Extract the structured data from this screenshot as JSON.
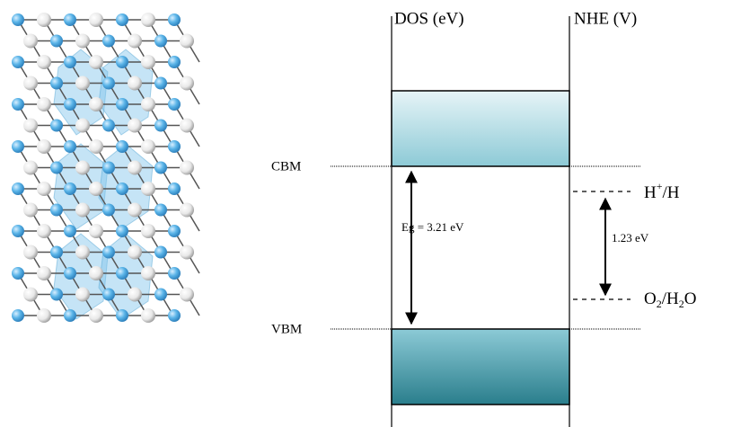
{
  "dos_label": "DOS (eV)",
  "nhe_label": "NHE (V)",
  "cbm_label": "CBM",
  "vbm_label": "VBM",
  "band_gap_label": "Eg = 3.21 eV",
  "redox_gap_label": "1.23 eV",
  "reduction_couple": [
    "H",
    "+",
    "/H"
  ],
  "oxidation_couple": [
    "O",
    "2",
    "/H",
    "2",
    "O"
  ]
}
